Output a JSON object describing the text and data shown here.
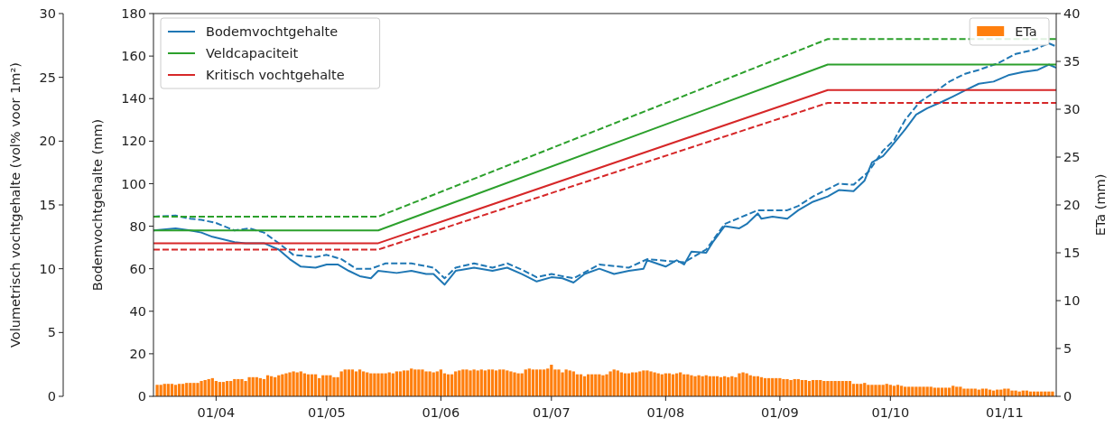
{
  "chart_data": {
    "type": "line",
    "xlabel": null,
    "ylabel": "Bodemvochtgehalte (mm)",
    "y2label": "ETa (mm)",
    "y3label": "Volumetrisch vochtgehalte (vol% voor 1m²)",
    "xlim": [
      "--03-15",
      "--11-15"
    ],
    "xticks": [
      {
        "value": "--04-01",
        "label": "01/04"
      },
      {
        "value": "--05-01",
        "label": "01/05"
      },
      {
        "value": "--06-01",
        "label": "01/06"
      },
      {
        "value": "--07-01",
        "label": "01/07"
      },
      {
        "value": "--08-01",
        "label": "01/08"
      },
      {
        "value": "--09-01",
        "label": "01/09"
      },
      {
        "value": "--10-01",
        "label": "01/10"
      },
      {
        "value": "--11-01",
        "label": "01/11"
      }
    ],
    "ylim": [
      0,
      180
    ],
    "yticks": [
      0,
      20,
      40,
      60,
      80,
      100,
      120,
      140,
      160,
      180
    ],
    "y2lim": [
      0,
      40
    ],
    "y2ticks": [
      0,
      5,
      10,
      15,
      20,
      25,
      30,
      35,
      40
    ],
    "y3lim": [
      0,
      30
    ],
    "y3ticks": [
      0,
      5,
      10,
      15,
      20,
      25,
      30
    ],
    "legend": "top left",
    "series": [
      {
        "name": "ETa",
        "type": "bar",
        "axis": "y2",
        "color": "#ff7f0e",
        "x": [
          "--03-16",
          "--03-17",
          "--03-18",
          "--03-19",
          "--03-20",
          "--03-21",
          "--03-22",
          "--03-23",
          "--03-24",
          "--03-25",
          "--03-26",
          "--03-27",
          "--03-28",
          "--03-29",
          "--03-30",
          "--03-31",
          "--04-01",
          "--04-02",
          "--04-03",
          "--04-04",
          "--04-05",
          "--04-06",
          "--04-07",
          "--04-08",
          "--04-09",
          "--04-10",
          "--04-11",
          "--04-12",
          "--04-13",
          "--04-14",
          "--04-15",
          "--04-16",
          "--04-17",
          "--04-18",
          "--04-19",
          "--04-20",
          "--04-21",
          "--04-22",
          "--04-23",
          "--04-24",
          "--04-25",
          "--04-26",
          "--04-27",
          "--04-28",
          "--04-29",
          "--04-30",
          "--05-01",
          "--05-02",
          "--05-03",
          "--05-04",
          "--05-05",
          "--05-06",
          "--05-07",
          "--05-08",
          "--05-09",
          "--05-10",
          "--05-11",
          "--05-12",
          "--05-13",
          "--05-14",
          "--05-15",
          "--05-16",
          "--05-17",
          "--05-18",
          "--05-19",
          "--05-20",
          "--05-21",
          "--05-22",
          "--05-23",
          "--05-24",
          "--05-25",
          "--05-26",
          "--05-27",
          "--05-28",
          "--05-29",
          "--05-30",
          "--05-31",
          "--06-01",
          "--06-02",
          "--06-03",
          "--06-04",
          "--06-05",
          "--06-06",
          "--06-07",
          "--06-08",
          "--06-09",
          "--06-10",
          "--06-11",
          "--06-12",
          "--06-13",
          "--06-14",
          "--06-15",
          "--06-16",
          "--06-17",
          "--06-18",
          "--06-19",
          "--06-20",
          "--06-21",
          "--06-22",
          "--06-23",
          "--06-24",
          "--06-25",
          "--06-26",
          "--06-27",
          "--06-28",
          "--06-29",
          "--06-30",
          "--07-01",
          "--07-02",
          "--07-03",
          "--07-04",
          "--07-05",
          "--07-06",
          "--07-07",
          "--07-08",
          "--07-09",
          "--07-10",
          "--07-11",
          "--07-12",
          "--07-13",
          "--07-14",
          "--07-15",
          "--07-16",
          "--07-17",
          "--07-18",
          "--07-19",
          "--07-20",
          "--07-21",
          "--07-22",
          "--07-23",
          "--07-24",
          "--07-25",
          "--07-26",
          "--07-27",
          "--07-28",
          "--07-29",
          "--07-30",
          "--07-31",
          "--08-01",
          "--08-02",
          "--08-03",
          "--08-04",
          "--08-05",
          "--08-06",
          "--08-07",
          "--08-08",
          "--08-09",
          "--08-10",
          "--08-11",
          "--08-12",
          "--08-13",
          "--08-14",
          "--08-15",
          "--08-16",
          "--08-17",
          "--08-18",
          "--08-19",
          "--08-20",
          "--08-21",
          "--08-22",
          "--08-23",
          "--08-24",
          "--08-25",
          "--08-26",
          "--08-27",
          "--08-28",
          "--08-29",
          "--08-30",
          "--08-31",
          "--09-01",
          "--09-02",
          "--09-03",
          "--09-04",
          "--09-05",
          "--09-06",
          "--09-07",
          "--09-08",
          "--09-09",
          "--09-10",
          "--09-11",
          "--09-12",
          "--09-13",
          "--09-14",
          "--09-15",
          "--09-16",
          "--09-17",
          "--09-18",
          "--09-19",
          "--09-20",
          "--09-21",
          "--09-22",
          "--09-23",
          "--09-24",
          "--09-25",
          "--09-26",
          "--09-27",
          "--09-28",
          "--09-29",
          "--09-30",
          "--10-01",
          "--10-02",
          "--10-03",
          "--10-04",
          "--10-05",
          "--10-06",
          "--10-07",
          "--10-08",
          "--10-09",
          "--10-10",
          "--10-11",
          "--10-12",
          "--10-13",
          "--10-14",
          "--10-15",
          "--10-16",
          "--10-17",
          "--10-18",
          "--10-19",
          "--10-20",
          "--10-21",
          "--10-22",
          "--10-23",
          "--10-24",
          "--10-25",
          "--10-26",
          "--10-27",
          "--10-28",
          "--10-29",
          "--10-30",
          "--10-31",
          "--11-01",
          "--11-02",
          "--11-03",
          "--11-04",
          "--11-05",
          "--11-06",
          "--11-07",
          "--11-08",
          "--11-09",
          "--11-10",
          "--11-11",
          "--11-12",
          "--11-13",
          "--11-14"
        ],
        "values": [
          1.2,
          1.2,
          1.3,
          1.3,
          1.3,
          1.2,
          1.3,
          1.3,
          1.4,
          1.4,
          1.4,
          1.4,
          1.6,
          1.7,
          1.8,
          1.9,
          1.6,
          1.5,
          1.5,
          1.6,
          1.6,
          1.8,
          1.8,
          1.8,
          1.6,
          2.0,
          2.0,
          2.0,
          1.9,
          1.8,
          2.2,
          2.1,
          2.0,
          2.2,
          2.3,
          2.4,
          2.5,
          2.6,
          2.5,
          2.6,
          2.4,
          2.3,
          2.3,
          2.3,
          1.9,
          2.2,
          2.2,
          2.2,
          2.0,
          2.0,
          2.6,
          2.8,
          2.8,
          2.8,
          2.6,
          2.8,
          2.6,
          2.5,
          2.4,
          2.4,
          2.4,
          2.4,
          2.4,
          2.5,
          2.4,
          2.6,
          2.6,
          2.7,
          2.7,
          2.9,
          2.8,
          2.8,
          2.8,
          2.6,
          2.6,
          2.5,
          2.6,
          2.8,
          2.4,
          2.3,
          2.3,
          2.6,
          2.7,
          2.8,
          2.8,
          2.7,
          2.8,
          2.7,
          2.8,
          2.7,
          2.8,
          2.8,
          2.7,
          2.8,
          2.8,
          2.7,
          2.6,
          2.5,
          2.4,
          2.4,
          2.8,
          2.9,
          2.8,
          2.8,
          2.8,
          2.8,
          2.9,
          3.3,
          2.8,
          2.8,
          2.5,
          2.8,
          2.7,
          2.6,
          2.3,
          2.3,
          2.1,
          2.3,
          2.3,
          2.3,
          2.3,
          2.2,
          2.3,
          2.6,
          2.8,
          2.7,
          2.5,
          2.4,
          2.4,
          2.5,
          2.5,
          2.6,
          2.7,
          2.7,
          2.6,
          2.5,
          2.4,
          2.3,
          2.4,
          2.4,
          2.3,
          2.4,
          2.5,
          2.3,
          2.3,
          2.2,
          2.1,
          2.2,
          2.1,
          2.2,
          2.1,
          2.1,
          2.1,
          2.0,
          2.1,
          2.0,
          2.1,
          2.0,
          2.4,
          2.5,
          2.4,
          2.2,
          2.1,
          2.1,
          2.0,
          1.9,
          1.9,
          1.9,
          1.9,
          1.9,
          1.8,
          1.8,
          1.7,
          1.8,
          1.8,
          1.7,
          1.7,
          1.6,
          1.7,
          1.7,
          1.7,
          1.6,
          1.6,
          1.6,
          1.6,
          1.6,
          1.6,
          1.6,
          1.6,
          1.3,
          1.3,
          1.3,
          1.4,
          1.2,
          1.2,
          1.2,
          1.2,
          1.2,
          1.3,
          1.2,
          1.1,
          1.2,
          1.1,
          1.0,
          1.0,
          1.0,
          1.0,
          1.0,
          1.0,
          1.0,
          1.0,
          0.9,
          0.9,
          0.9,
          0.9,
          0.9,
          1.1,
          1.0,
          1.0,
          0.8,
          0.8,
          0.8,
          0.8,
          0.7,
          0.8,
          0.8,
          0.7,
          0.6,
          0.7,
          0.7,
          0.8,
          0.8,
          0.6,
          0.6,
          0.5,
          0.6,
          0.6,
          0.5,
          0.5,
          0.5,
          0.5,
          0.5,
          0.5,
          0.5
        ]
      },
      {
        "name": "Bodemvochtgehalte",
        "color": "#1f77b4",
        "line_style": "solid",
        "x": [
          "--03-15",
          "--03-21",
          "--03-25",
          "--03-28",
          "--03-31",
          "--04-06",
          "--04-09",
          "--04-14",
          "--04-18",
          "--04-21",
          "--04-24",
          "--04-28",
          "--05-01",
          "--05-04",
          "--05-07",
          "--05-10",
          "--05-13",
          "--05-15",
          "--05-20",
          "--05-24",
          "--05-28",
          "--05-30",
          "--06-02",
          "--06-05",
          "--06-10",
          "--06-15",
          "--06-19",
          "--06-23",
          "--06-27",
          "--07-01",
          "--07-04",
          "--07-07",
          "--07-10",
          "--07-14",
          "--07-18",
          "--07-22",
          "--07-26",
          "--07-27",
          "--08-01",
          "--08-04",
          "--08-06",
          "--08-08",
          "--08-12",
          "--08-14",
          "--08-17",
          "--08-21",
          "--08-23",
          "--08-26",
          "--08-27",
          "--08-30",
          "--09-03",
          "--09-06",
          "--09-10",
          "--09-14",
          "--09-17",
          "--09-21",
          "--09-24",
          "--09-26",
          "--09-29",
          "--10-01",
          "--10-05",
          "--10-08",
          "--10-11",
          "--10-15",
          "--10-18",
          "--10-22",
          "--10-25",
          "--10-29",
          "--11-02",
          "--11-06",
          "--11-10",
          "--11-13",
          "--11-15"
        ],
        "values": [
          78,
          79,
          78,
          77,
          75,
          72.5,
          72,
          72,
          69,
          64.5,
          61,
          60.5,
          62,
          62,
          59,
          56.5,
          55.5,
          59,
          58,
          59,
          57.5,
          57.5,
          52.5,
          59,
          60.5,
          59,
          60.5,
          57.5,
          54,
          56,
          55.5,
          53.5,
          57.5,
          60,
          57.5,
          59,
          60,
          64,
          61,
          64,
          62,
          68,
          67.5,
          73,
          80,
          79,
          81,
          86,
          83.5,
          84.5,
          83.5,
          87.5,
          91.5,
          94,
          97,
          96.5,
          101.5,
          110,
          113,
          117,
          125.5,
          132.5,
          135.5,
          138.5,
          141,
          144.5,
          147,
          148,
          151,
          152.5,
          153.5,
          156,
          154.5
        ]
      },
      {
        "color": "#1f77b4",
        "line_style": "dashed",
        "x": [
          "--03-15",
          "--03-21",
          "--03-25",
          "--03-28",
          "--04-01",
          "--04-06",
          "--04-10",
          "--04-14",
          "--04-18",
          "--04-22",
          "--04-28",
          "--05-01",
          "--05-05",
          "--05-09",
          "--05-13",
          "--05-17",
          "--05-24",
          "--05-30",
          "--06-02",
          "--06-05",
          "--06-10",
          "--06-15",
          "--06-19",
          "--06-23",
          "--06-27",
          "--07-01",
          "--07-07",
          "--07-14",
          "--07-22",
          "--07-27",
          "--08-06",
          "--08-12",
          "--08-17",
          "--08-26",
          "--08-30",
          "--09-03",
          "--09-06",
          "--09-10",
          "--09-17",
          "--09-21",
          "--09-25",
          "--09-29",
          "--10-02",
          "--10-05",
          "--10-09",
          "--10-13",
          "--10-17",
          "--10-21",
          "--10-25",
          "--10-30",
          "--11-04",
          "--11-09",
          "--11-13",
          "--11-15"
        ],
        "values": [
          84.5,
          85,
          83.5,
          83,
          81.5,
          78,
          79,
          77,
          72,
          66.5,
          65.5,
          66.5,
          64.5,
          60,
          60,
          62.5,
          62.5,
          60.5,
          55.5,
          60.5,
          62.5,
          60.5,
          62.5,
          59.5,
          56,
          57.5,
          55.5,
          62,
          60.5,
          64.5,
          63,
          69,
          81,
          87.5,
          87.5,
          87.5,
          89.5,
          94,
          100,
          99.5,
          105.5,
          115.5,
          120.5,
          130,
          138.5,
          143,
          148,
          151.5,
          153.5,
          156.5,
          161,
          163,
          166,
          164.5
        ]
      },
      {
        "name": "Veldcapaciteit",
        "color": "#2ca02c",
        "line_style": "solid",
        "x": [
          "--03-15",
          "--05-15",
          "--09-14",
          "--11-15"
        ],
        "values": [
          78,
          78,
          156,
          156
        ]
      },
      {
        "color": "#2ca02c",
        "line_style": "dashed",
        "x": [
          "--03-15",
          "--05-15",
          "--09-14",
          "--11-15"
        ],
        "values": [
          84.5,
          84.5,
          168,
          168
        ]
      },
      {
        "name": "Kritisch vochtgehalte",
        "color": "#d62728",
        "line_style": "solid",
        "x": [
          "--03-15",
          "--05-15",
          "--09-14",
          "--11-15"
        ],
        "values": [
          72,
          72,
          144,
          144
        ]
      },
      {
        "color": "#d62728",
        "line_style": "dashed",
        "x": [
          "--03-15",
          "--05-15",
          "--09-14",
          "--11-15"
        ],
        "values": [
          69,
          69,
          138,
          138
        ]
      }
    ]
  }
}
